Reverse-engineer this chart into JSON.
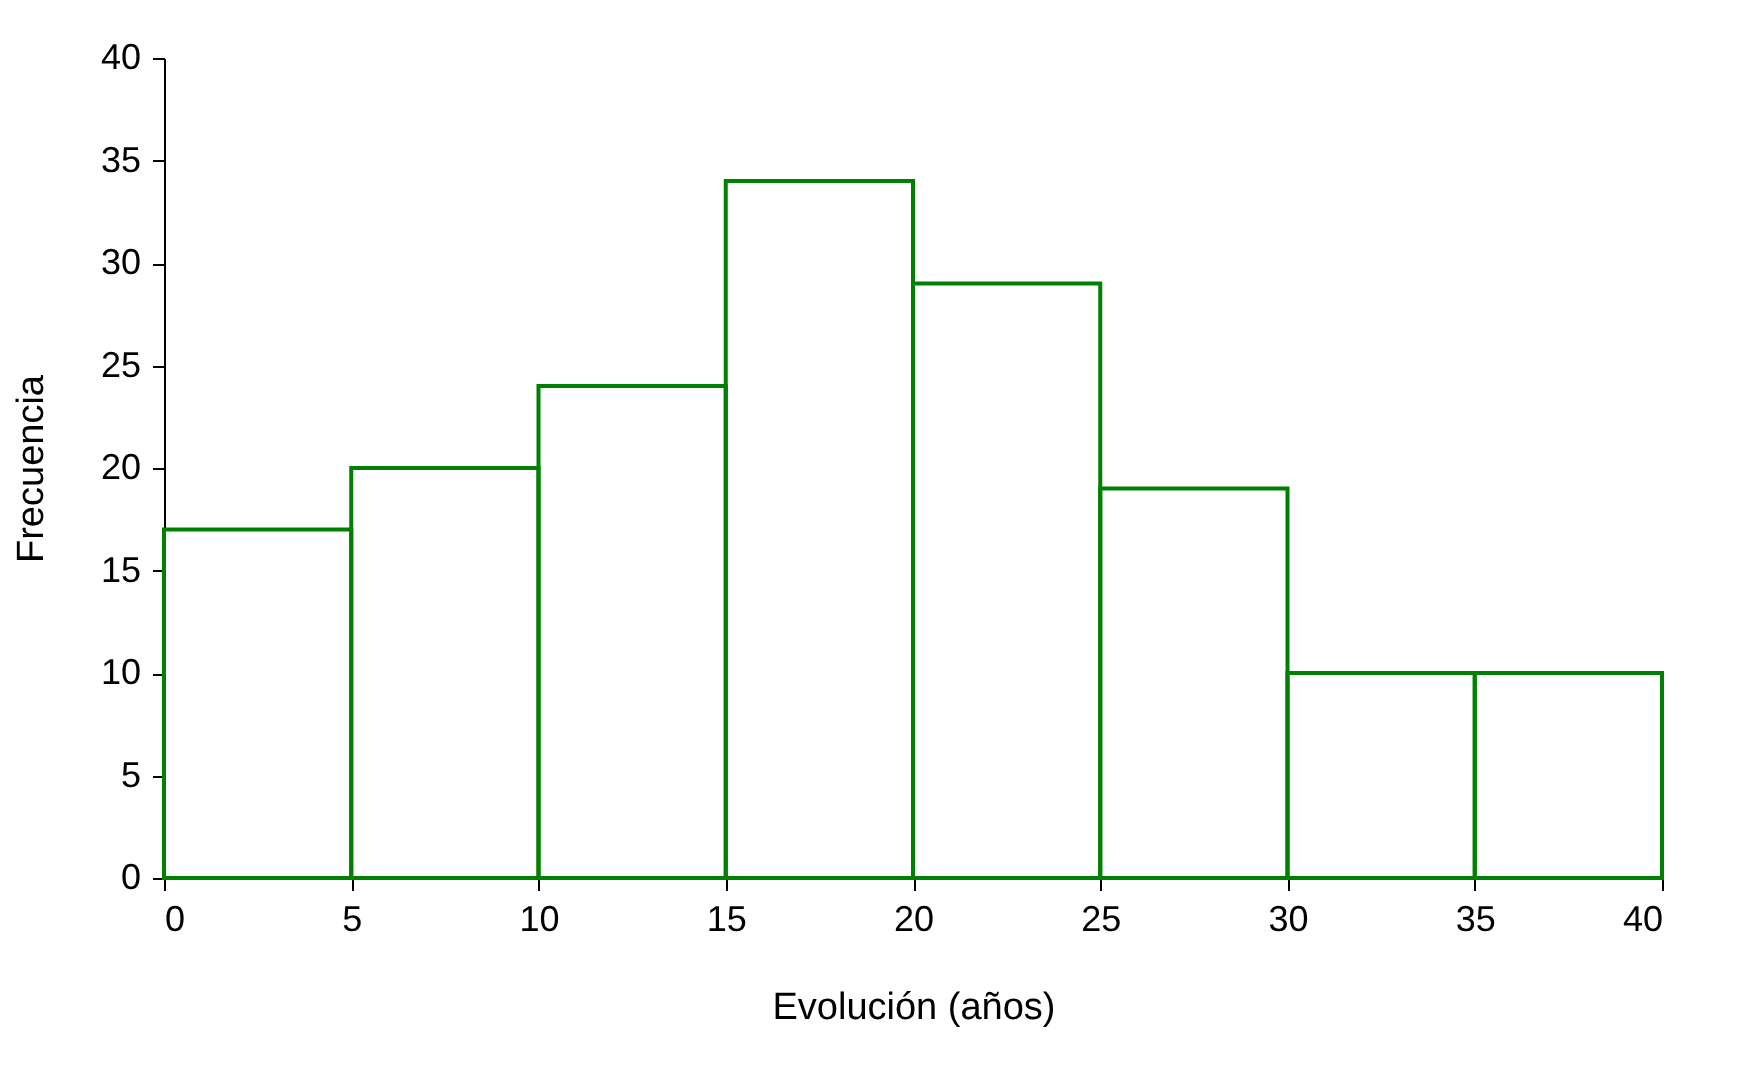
{
  "chart_data": {
    "type": "histogram",
    "xlabel": "Evolución (años)",
    "ylabel": "Frecuencia",
    "bins": [
      0,
      5,
      10,
      15,
      20,
      25,
      30,
      35,
      40
    ],
    "values": [
      17,
      20,
      24,
      34,
      29,
      19,
      10,
      10
    ],
    "color": "#008000",
    "xlim": [
      0,
      40
    ],
    "xticks": [
      0,
      5,
      10,
      15,
      20,
      25,
      30,
      35,
      40
    ],
    "ylim": [
      0,
      40
    ],
    "yticks": [
      0,
      5,
      10,
      15,
      20,
      25,
      30,
      35,
      40
    ],
    "grid": false
  }
}
